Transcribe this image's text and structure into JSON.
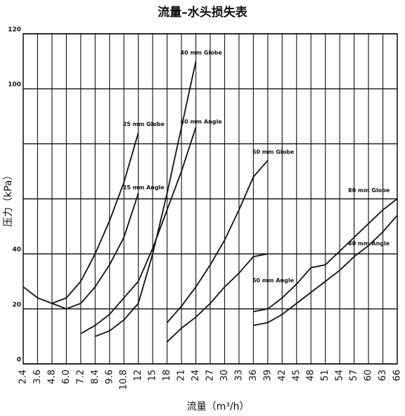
{
  "chart_data": {
    "type": "line",
    "title": "流量–水头损失表",
    "xlabel": "流量（m³/h）",
    "ylabel": "压力（kPa）",
    "categories": [
      "2.4",
      "3.6",
      "4.8",
      "6.0",
      "7.2",
      "8.4",
      "9.6",
      "10.8",
      "12",
      "15",
      "18",
      "21",
      "24",
      "27",
      "30",
      "33",
      "36",
      "39",
      "42",
      "45",
      "48",
      "51",
      "54",
      "57",
      "60",
      "63",
      "66"
    ],
    "ylim": [
      0,
      120
    ],
    "yticks": [
      0,
      20,
      40,
      100,
      120
    ],
    "ygrid": [
      60,
      80
    ],
    "grid": true,
    "series": [
      {
        "name": "25 mm Globe",
        "color": "#111111",
        "values": [
          28,
          24,
          22,
          24,
          30,
          40,
          52,
          66,
          84,
          null,
          null,
          null,
          null,
          null,
          null,
          null,
          null,
          null,
          null,
          null,
          null,
          null,
          null,
          null,
          null,
          null,
          null
        ]
      },
      {
        "name": "25 mm Angle",
        "color": "#111111",
        "values": [
          null,
          null,
          22,
          20,
          22,
          28,
          36,
          46,
          62,
          null,
          null,
          null,
          null,
          null,
          null,
          null,
          null,
          null,
          null,
          null,
          null,
          null,
          null,
          null,
          null,
          null,
          null
        ]
      },
      {
        "name": "40 mm Globe",
        "color": "#111111",
        "values": [
          null,
          null,
          null,
          null,
          null,
          10,
          12,
          16,
          22,
          40,
          62,
          86,
          110,
          null,
          null,
          null,
          null,
          null,
          null,
          null,
          null,
          null,
          null,
          null,
          null,
          null,
          null
        ]
      },
      {
        "name": "40 mm Angle",
        "color": "#111111",
        "values": [
          null,
          null,
          null,
          null,
          11,
          14,
          18,
          24,
          30,
          42,
          56,
          70,
          86,
          null,
          null,
          null,
          null,
          null,
          null,
          null,
          null,
          null,
          null,
          null,
          null,
          null,
          null
        ]
      },
      {
        "name": "50 mm Globe",
        "color": "#111111",
        "values": [
          null,
          null,
          null,
          null,
          null,
          null,
          null,
          null,
          null,
          null,
          15,
          21,
          28,
          36,
          45,
          56,
          68,
          74,
          null,
          null,
          null,
          null,
          null,
          null,
          null,
          null,
          null
        ]
      },
      {
        "name": "50 mm Angle",
        "color": "#111111",
        "values": [
          null,
          null,
          null,
          null,
          null,
          null,
          null,
          null,
          null,
          null,
          8,
          13,
          17,
          22,
          28,
          33,
          39,
          40,
          null,
          null,
          null,
          null,
          null,
          null,
          null,
          null,
          null
        ]
      },
      {
        "name": "80 mm Globe",
        "color": "#111111",
        "values": [
          null,
          null,
          null,
          null,
          null,
          null,
          null,
          null,
          null,
          null,
          null,
          null,
          null,
          null,
          null,
          null,
          19,
          20,
          24,
          29,
          35,
          36,
          41,
          46,
          51,
          56,
          60
        ]
      },
      {
        "name": "80 mm Angle",
        "color": "#111111",
        "values": [
          null,
          null,
          null,
          null,
          null,
          null,
          null,
          null,
          null,
          null,
          null,
          null,
          null,
          null,
          null,
          null,
          14,
          15,
          18,
          22,
          26,
          30,
          34,
          39,
          43,
          48,
          54
        ]
      }
    ]
  }
}
